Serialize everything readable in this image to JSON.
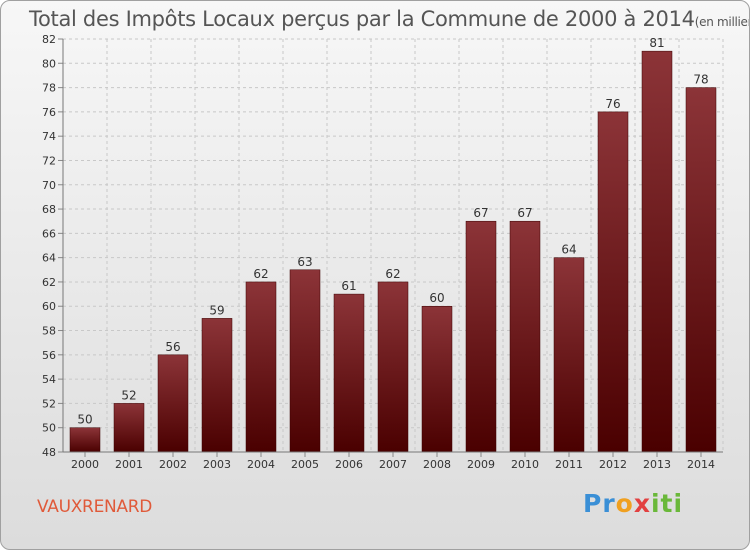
{
  "title": "Total des Impôts Locaux perçus par la Commune de 2000 à 2014",
  "unit_label": "(en milliers d'€)",
  "commune": "VAUXRENARD",
  "logo": {
    "p1": "Pr",
    "p2": "o",
    "p3": "x",
    "p4": "iti"
  },
  "colors": {
    "bar_top": "#8c3438",
    "bar_bottom": "#4a0000",
    "commune_text": "#e05a3a"
  },
  "chart_data": {
    "type": "bar",
    "title": "Total des Impôts Locaux perçus par la Commune de 2000 à 2014",
    "xlabel": "",
    "ylabel": "en milliers d'€",
    "categories": [
      "2000",
      "2001",
      "2002",
      "2003",
      "2004",
      "2005",
      "2006",
      "2007",
      "2008",
      "2009",
      "2010",
      "2011",
      "2012",
      "2013",
      "2014"
    ],
    "values": [
      50,
      52,
      56,
      59,
      62,
      63,
      61,
      62,
      60,
      67,
      67,
      64,
      76,
      81,
      78
    ],
    "ylim": [
      48,
      82
    ],
    "yticks": [
      48,
      50,
      52,
      54,
      56,
      58,
      60,
      62,
      64,
      66,
      68,
      70,
      72,
      74,
      76,
      78,
      80,
      82
    ],
    "grid": true
  }
}
